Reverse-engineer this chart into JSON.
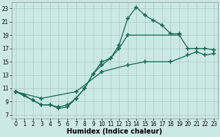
{
  "bg_color": "#cce8e4",
  "grid_color": "#aacccc",
  "line_color": "#1a6b5a",
  "line_width": 1.0,
  "marker": "+",
  "marker_size": 4,
  "marker_edge_width": 1.2,
  "xlabel": "Humidex (Indice chaleur)",
  "xlabel_fontsize": 7,
  "xlim": [
    -0.5,
    23.5
  ],
  "ylim": [
    6.5,
    24.0
  ],
  "xticks": [
    0,
    1,
    2,
    3,
    4,
    5,
    6,
    7,
    8,
    9,
    10,
    11,
    12,
    13,
    14,
    15,
    16,
    17,
    18,
    19,
    20,
    21,
    22,
    23
  ],
  "yticks": [
    7,
    9,
    11,
    13,
    15,
    17,
    19,
    21,
    23
  ],
  "tick_fontsize": 5.5,
  "curve1_x": [
    0,
    1,
    2,
    3,
    4,
    5,
    6,
    7,
    8,
    9,
    10,
    11,
    12,
    13,
    14,
    15,
    16,
    17,
    18,
    19
  ],
  "curve1_y": [
    10.5,
    10.0,
    9.2,
    8.5,
    8.5,
    8.0,
    8.2,
    9.5,
    11.0,
    13.2,
    15.0,
    15.5,
    17.5,
    21.5,
    23.2,
    22.0,
    21.2,
    20.5,
    19.2,
    19.2
  ],
  "curve2_x": [
    0,
    2,
    3,
    4,
    5,
    6,
    7,
    8,
    9,
    10,
    11,
    12,
    13,
    19,
    20,
    21,
    22,
    23
  ],
  "curve2_y": [
    10.5,
    9.2,
    8.5,
    8.5,
    8.2,
    8.5,
    9.5,
    11.0,
    13.2,
    14.5,
    15.5,
    17.0,
    19.0,
    19.0,
    17.0,
    17.0,
    17.0,
    16.8
  ],
  "curve3_x": [
    0,
    3,
    7,
    10,
    13,
    15,
    18,
    20,
    21,
    22,
    23
  ],
  "curve3_y": [
    10.5,
    9.5,
    10.5,
    13.5,
    14.5,
    15.0,
    15.0,
    16.0,
    16.5,
    16.0,
    16.2
  ]
}
